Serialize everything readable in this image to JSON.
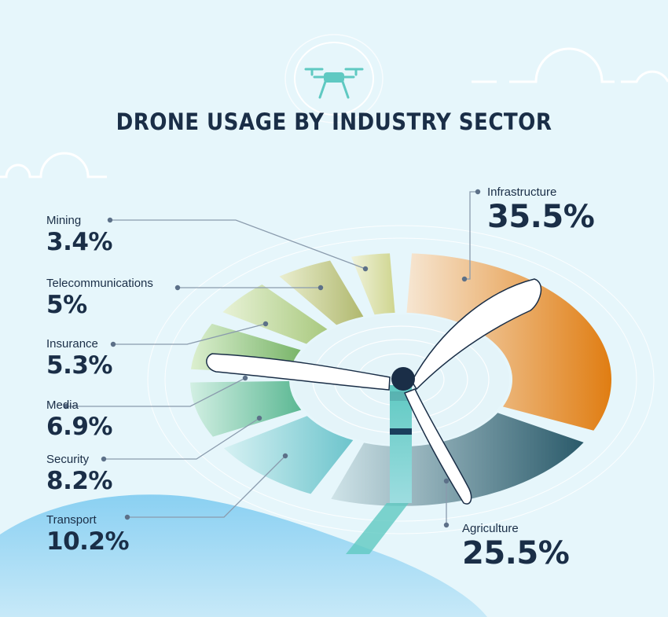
{
  "title": "DRONE USAGE BY INDUSTRY SECTOR",
  "chart_data": {
    "type": "pie",
    "title": "DRONE USAGE BY INDUSTRY SECTOR",
    "slices": [
      {
        "name": "Infrastructure",
        "value": 35.5,
        "label": "35.5%",
        "color": "#e07d12"
      },
      {
        "name": "Agriculture",
        "value": 25.5,
        "label": "25.5%",
        "color": "#2a5a6a"
      },
      {
        "name": "Transport",
        "value": 10.2,
        "label": "10.2%",
        "color": "#6cc4cc"
      },
      {
        "name": "Security",
        "value": 8.2,
        "label": "8.2%",
        "color": "#5bb893"
      },
      {
        "name": "Media",
        "value": 6.9,
        "label": "6.9%",
        "color": "#79b56a"
      },
      {
        "name": "Insurance",
        "value": 5.3,
        "label": "5.3%",
        "color": "#a9c97f"
      },
      {
        "name": "Telecommunications",
        "value": 5,
        "label": "5%",
        "color": "#b0b86e"
      },
      {
        "name": "Mining",
        "value": 3.4,
        "label": "3.4%",
        "color": "#cfd58f"
      }
    ]
  },
  "labels": {
    "infrastructure": {
      "name": "Infrastructure",
      "value": "35.5%"
    },
    "agriculture": {
      "name": "Agriculture",
      "value": "25.5%"
    },
    "mining": {
      "name": "Mining",
      "value": "3.4%"
    },
    "telecommunications": {
      "name": "Telecommunications",
      "value": "5%"
    },
    "insurance": {
      "name": "Insurance",
      "value": "5.3%"
    },
    "media": {
      "name": "Media",
      "value": "6.9%"
    },
    "security": {
      "name": "Security",
      "value": "8.2%"
    },
    "transport": {
      "name": "Transport",
      "value": "10.2%"
    }
  },
  "colors": {
    "background": "#e6f6fb",
    "text": "#1a2e47",
    "accent_teal": "#5fc9c2",
    "ground": "#7ec7ee"
  },
  "icons": [
    "drone-icon",
    "wind-turbine-icon",
    "cloud-icon"
  ]
}
